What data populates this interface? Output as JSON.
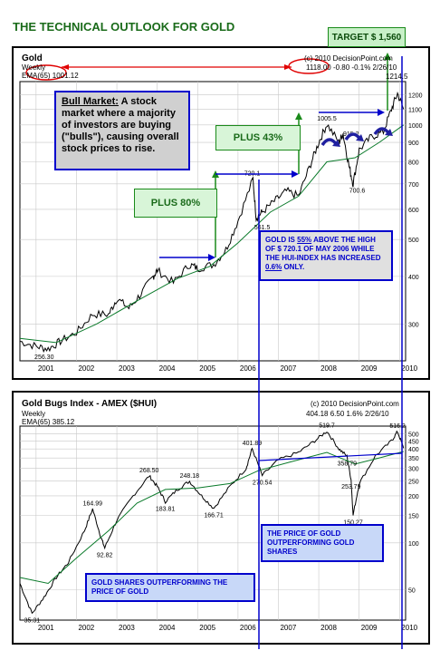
{
  "page_title": "THE TECHNICAL OUTLOOK FOR GOLD",
  "colors": {
    "title": "#1a6b1a",
    "grid": "#c8c8c8",
    "price": "#000000",
    "ema": "#0a7a2a",
    "annot_green": "#1a8a1a",
    "annot_blue": "#0000cc",
    "red": "#e00000"
  },
  "icons": {
    "arrow": "curved-arrow-icon"
  },
  "top_chart": {
    "name": "Gold",
    "subtitle": "Weekly",
    "ema_label": "EMA(65) 1001.12",
    "copyright": "(c) 2010 DecisionPoint.com",
    "stats": "1118.00 -0.80 -0.1% 2/26/10",
    "last_value": "1214.5"
  },
  "bottom_chart": {
    "name": "Gold Bugs Index - AMEX ($HUI)",
    "subtitle": "Weekly",
    "ema_label": "EMA(65) 385.12",
    "copyright": "(c) 2010 DecisionPoint.com",
    "stats": "404.18 6.50 1.6% 2/26/10"
  },
  "annotations": {
    "target": "TARGET $ 1,560",
    "bull_market_title": "Bull Market:",
    "bull_market_text": "A stock market where a majority of investors are buying (\"bulls\"), causing overall stock prices to rise.",
    "plus80": "PLUS 80%",
    "plus43": "PLUS 43%",
    "gold_above_1": "GOLD IS ",
    "gold_above_pct": "55%",
    "gold_above_2": " ABOVE THE HIGH OF $ 720.1 OF MAY 2006 WHILE THE HUI-INDEX HAS INCREASED ",
    "gold_above_pct2": "0.6%",
    "gold_above_3": " ONLY.",
    "price_outperform": "THE PRICE OF GOLD OUTPERFORMING GOLD SHARES",
    "shares_outperform": "GOLD SHARES OUTPERFORMING THE PRICE OF GOLD"
  },
  "chart_data": [
    {
      "type": "line",
      "title": "Gold",
      "x_ticks": [
        "2001",
        "2002",
        "2003",
        "2004",
        "2005",
        "2006",
        "2007",
        "2008",
        "2009",
        "2010"
      ],
      "y_ticks": [
        300,
        400,
        500,
        600,
        700,
        800,
        900,
        1000,
        1100,
        1200
      ],
      "y_scale": "log",
      "ylim": [
        240,
        1300
      ],
      "series": [
        {
          "values": [
            [
              2000.6,
              270
            ],
            [
              2001.0,
              262
            ],
            [
              2001.3,
              258
            ],
            [
              2001.6,
              270
            ],
            [
              2002.0,
              285
            ],
            [
              2002.4,
              318
            ],
            [
              2002.8,
              318
            ],
            [
              2003.0,
              350
            ],
            [
              2003.3,
              330
            ],
            [
              2003.6,
              360
            ],
            [
              2003.9,
              400
            ],
            [
              2004.0,
              415
            ],
            [
              2004.4,
              385
            ],
            [
              2004.8,
              430
            ],
            [
              2005.0,
              420
            ],
            [
              2005.4,
              430
            ],
            [
              2005.7,
              470
            ],
            [
              2006.0,
              560
            ],
            [
              2006.37,
              720
            ],
            [
              2006.45,
              570
            ],
            [
              2006.6,
              590
            ],
            [
              2006.9,
              630
            ],
            [
              2007.2,
              670
            ],
            [
              2007.5,
              650
            ],
            [
              2007.8,
              790
            ],
            [
              2008.0,
              900
            ],
            [
              2008.2,
              1005
            ],
            [
              2008.5,
              900
            ],
            [
              2008.6,
              950
            ],
            [
              2008.75,
              780
            ],
            [
              2008.85,
              700
            ],
            [
              2009.0,
              860
            ],
            [
              2009.3,
              930
            ],
            [
              2009.6,
              960
            ],
            [
              2009.8,
              1100
            ],
            [
              2009.95,
              1210
            ],
            [
              2010.1,
              1100
            ]
          ]
        },
        {
          "name": "EMA(65)",
          "values": [
            [
              2000.6,
              275
            ],
            [
              2001.5,
              268
            ],
            [
              2002.5,
              300
            ],
            [
              2003.5,
              345
            ],
            [
              2004.5,
              395
            ],
            [
              2005.3,
              425
            ],
            [
              2006.0,
              490
            ],
            [
              2006.8,
              590
            ],
            [
              2007.5,
              650
            ],
            [
              2008.2,
              800
            ],
            [
              2008.9,
              820
            ],
            [
              2009.5,
              900
            ],
            [
              2010.1,
              1000
            ]
          ]
        }
      ],
      "labels": [
        {
          "x": 2001.2,
          "y": 256.3,
          "text": "256.30"
        },
        {
          "x": 2006.35,
          "y": 720.1,
          "text": "720.1"
        },
        {
          "x": 2006.6,
          "y": 561.5,
          "text": "561.5"
        },
        {
          "x": 2008.2,
          "y": 1005.5,
          "text": "1005.5"
        },
        {
          "x": 2008.8,
          "y": 915.2,
          "text": "915.2"
        },
        {
          "x": 2008.95,
          "y": 700.6,
          "text": "700.6"
        }
      ]
    },
    {
      "type": "line",
      "title": "Gold Bugs Index - AMEX ($HUI)",
      "x_ticks": [
        "2001",
        "2002",
        "2003",
        "2004",
        "2005",
        "2006",
        "2007",
        "2008",
        "2009",
        "2010"
      ],
      "y_ticks": [
        50,
        100,
        150,
        200,
        250,
        300,
        350,
        400,
        450,
        500
      ],
      "y_scale": "log",
      "ylim": [
        32,
        560
      ],
      "series": [
        {
          "values": [
            [
              2000.6,
              55
            ],
            [
              2000.9,
              35.31
            ],
            [
              2001.2,
              45
            ],
            [
              2001.5,
              60
            ],
            [
              2001.8,
              75
            ],
            [
              2002.2,
              120
            ],
            [
              2002.4,
              164.99
            ],
            [
              2002.6,
              110
            ],
            [
              2002.7,
              92.82
            ],
            [
              2003.0,
              140
            ],
            [
              2003.4,
              200
            ],
            [
              2003.8,
              268.5
            ],
            [
              2004.0,
              230
            ],
            [
              2004.2,
              183.81
            ],
            [
              2004.5,
              220
            ],
            [
              2004.8,
              248.18
            ],
            [
              2005.1,
              200
            ],
            [
              2005.4,
              166.71
            ],
            [
              2005.8,
              230
            ],
            [
              2006.2,
              300
            ],
            [
              2006.35,
              401.89
            ],
            [
              2006.6,
              270.54
            ],
            [
              2007.0,
              340
            ],
            [
              2007.5,
              380
            ],
            [
              2007.9,
              450
            ],
            [
              2008.2,
              519.7
            ],
            [
              2008.5,
              400
            ],
            [
              2008.7,
              358.79
            ],
            [
              2008.8,
              253.79
            ],
            [
              2008.85,
              150.27
            ],
            [
              2009.0,
              240
            ],
            [
              2009.4,
              360
            ],
            [
              2009.8,
              450
            ],
            [
              2009.95,
              516.2
            ],
            [
              2010.1,
              404
            ]
          ]
        },
        {
          "name": "EMA(65)",
          "values": [
            [
              2000.6,
              60
            ],
            [
              2001.3,
              55
            ],
            [
              2002.0,
              80
            ],
            [
              2002.8,
              120
            ],
            [
              2003.5,
              180
            ],
            [
              2004.2,
              220
            ],
            [
              2005.0,
              225
            ],
            [
              2005.8,
              240
            ],
            [
              2006.5,
              290
            ],
            [
              2007.3,
              330
            ],
            [
              2008.2,
              380
            ],
            [
              2008.9,
              320
            ],
            [
              2009.5,
              350
            ],
            [
              2010.1,
              385
            ]
          ]
        }
      ],
      "labels": [
        {
          "x": 2000.9,
          "y": 35.31,
          "text": "35.31"
        },
        {
          "x": 2002.4,
          "y": 164.99,
          "text": "164.99"
        },
        {
          "x": 2002.7,
          "y": 92.82,
          "text": "92.82"
        },
        {
          "x": 2003.8,
          "y": 268.5,
          "text": "268.50"
        },
        {
          "x": 2004.2,
          "y": 183.81,
          "text": "183.81"
        },
        {
          "x": 2004.8,
          "y": 248.18,
          "text": "248.18"
        },
        {
          "x": 2005.4,
          "y": 166.71,
          "text": "166.71"
        },
        {
          "x": 2006.35,
          "y": 401.89,
          "text": "401.89"
        },
        {
          "x": 2006.6,
          "y": 270.54,
          "text": "270.54"
        },
        {
          "x": 2008.2,
          "y": 519.7,
          "text": "519.7"
        },
        {
          "x": 2008.7,
          "y": 358.79,
          "text": "358.79"
        },
        {
          "x": 2008.8,
          "y": 253.79,
          "text": "253.79"
        },
        {
          "x": 2008.85,
          "y": 150.27,
          "text": "150.27"
        },
        {
          "x": 2009.95,
          "y": 516.2,
          "text": "516.2"
        }
      ]
    }
  ]
}
